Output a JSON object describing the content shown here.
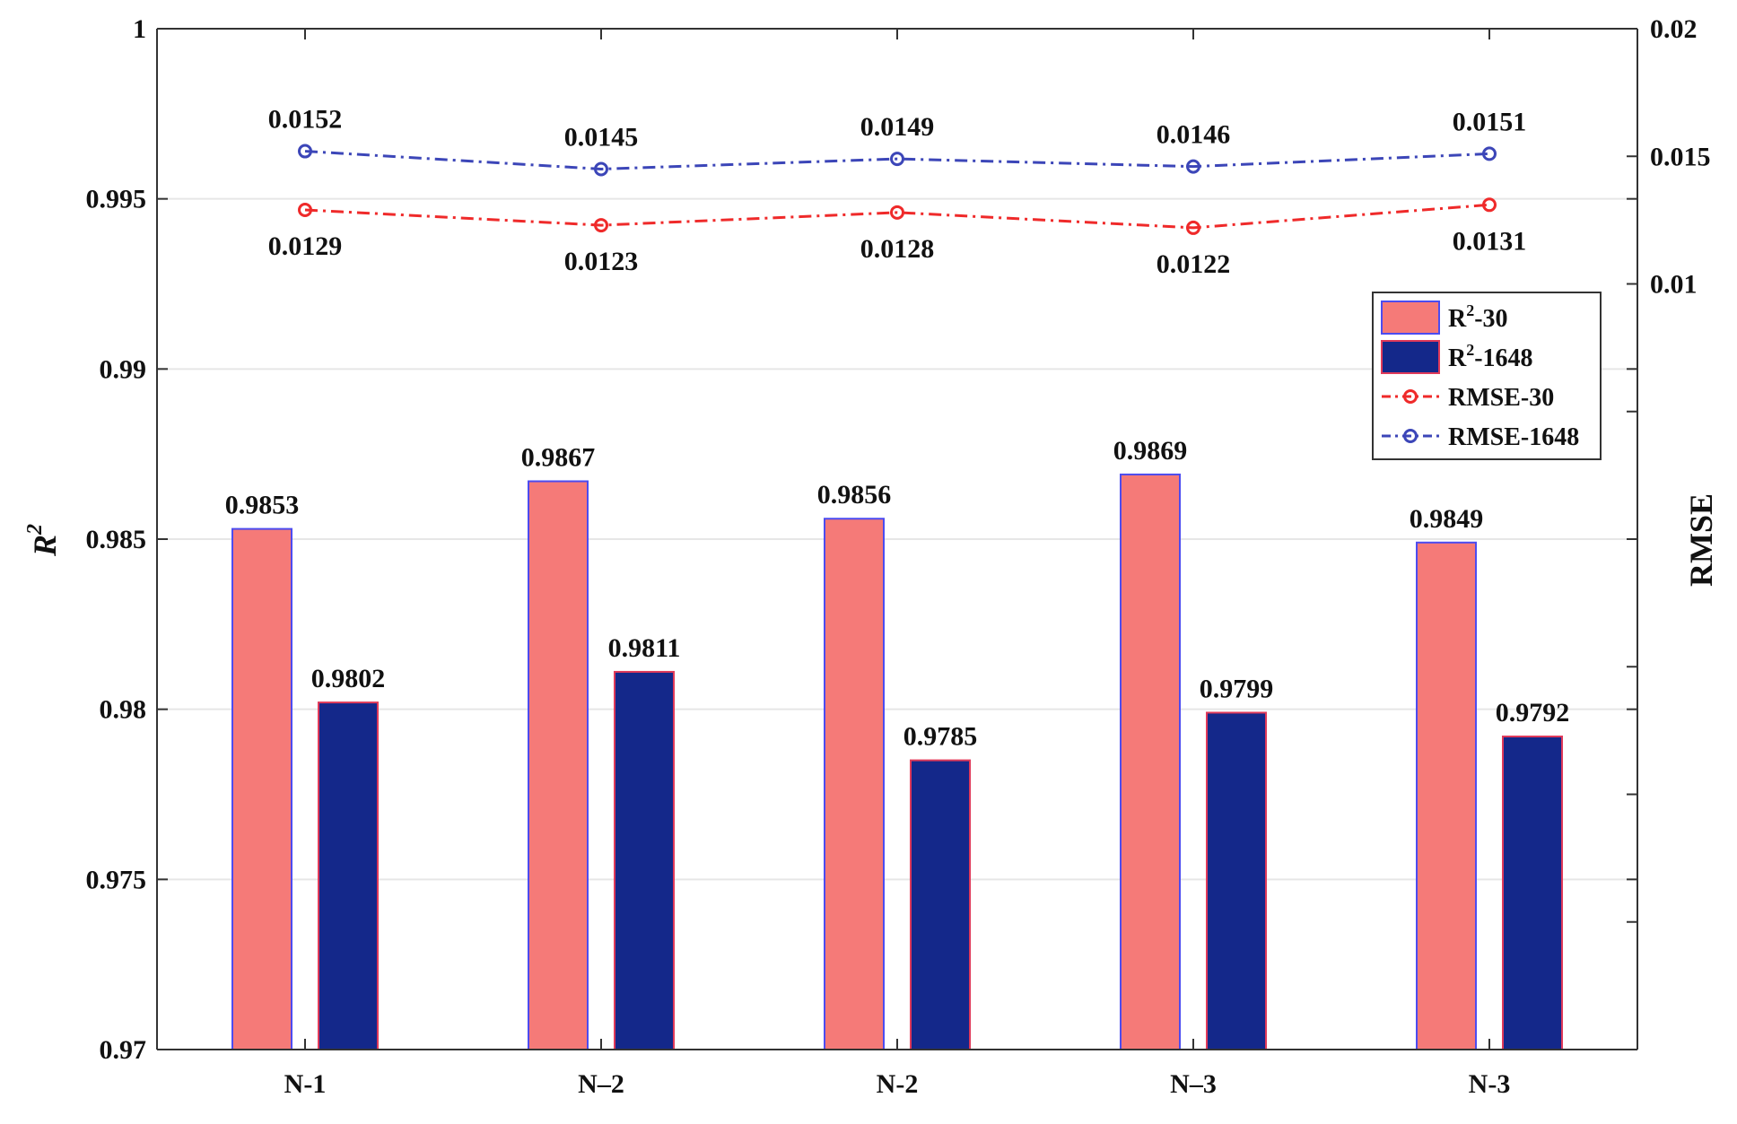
{
  "chart_data": {
    "type": "bar",
    "categories": [
      "N-1",
      "N–2",
      "N-2",
      "N–3",
      "N-3"
    ],
    "series": [
      {
        "name": "R²-30",
        "kind": "bar",
        "axis": "left",
        "color": "#f57a78",
        "edge": "#4c4cf0",
        "values": [
          0.9853,
          0.9867,
          0.9856,
          0.9869,
          0.9849
        ],
        "labels": [
          "0.9853",
          "0.9867",
          "0.9856",
          "0.9869",
          "0.9849"
        ]
      },
      {
        "name": "R²-1648",
        "kind": "bar",
        "axis": "left",
        "color": "#14288a",
        "edge": "#e03a5a",
        "values": [
          0.9802,
          0.9811,
          0.9785,
          0.9799,
          0.9792
        ],
        "labels": [
          "0.9802",
          "0.9811",
          "0.9785",
          "0.9799",
          "0.9792"
        ]
      },
      {
        "name": "RMSE-30",
        "kind": "line",
        "axis": "right",
        "color": "#ef2a2a",
        "values": [
          0.0129,
          0.0123,
          0.0128,
          0.0122,
          0.0131
        ],
        "labels": [
          "0.0129",
          "0.0123",
          "0.0128",
          "0.0122",
          "0.0131"
        ]
      },
      {
        "name": "RMSE-1648",
        "kind": "line",
        "axis": "right",
        "color": "#3c46b8",
        "values": [
          0.0152,
          0.0145,
          0.0149,
          0.0146,
          0.0151
        ],
        "labels": [
          "0.0152",
          "0.0145",
          "0.0149",
          "0.0146",
          "0.0151"
        ]
      }
    ],
    "ylabel": "R",
    "ylabel_sup": "2",
    "y2label": "RMSE",
    "ylim": [
      0.97,
      1.0
    ],
    "yticks": [
      0.97,
      0.975,
      0.98,
      0.985,
      0.99,
      0.995,
      1.0
    ],
    "ytick_labels": [
      "0.97",
      "0.975",
      "0.98",
      "0.985",
      "0.99",
      "0.995",
      "1"
    ],
    "y2lim": [
      -0.02,
      0.02
    ],
    "y2ticks": [
      0.01,
      0.015,
      0.02
    ],
    "y2tick_labels": [
      "0.01",
      "0.015",
      "0.02"
    ],
    "y2minor_ticks": [
      -0.015,
      -0.01,
      -0.005,
      0.0,
      0.005
    ],
    "grid": true,
    "legend": {
      "position": "upper-right",
      "entries": [
        {
          "base": "R",
          "sup": "2",
          "suffix": "-30"
        },
        {
          "base": "R",
          "sup": "2",
          "suffix": "-1648"
        },
        {
          "base": "RMSE-30",
          "sup": "",
          "suffix": ""
        },
        {
          "base": "RMSE-1648",
          "sup": "",
          "suffix": ""
        }
      ]
    }
  }
}
